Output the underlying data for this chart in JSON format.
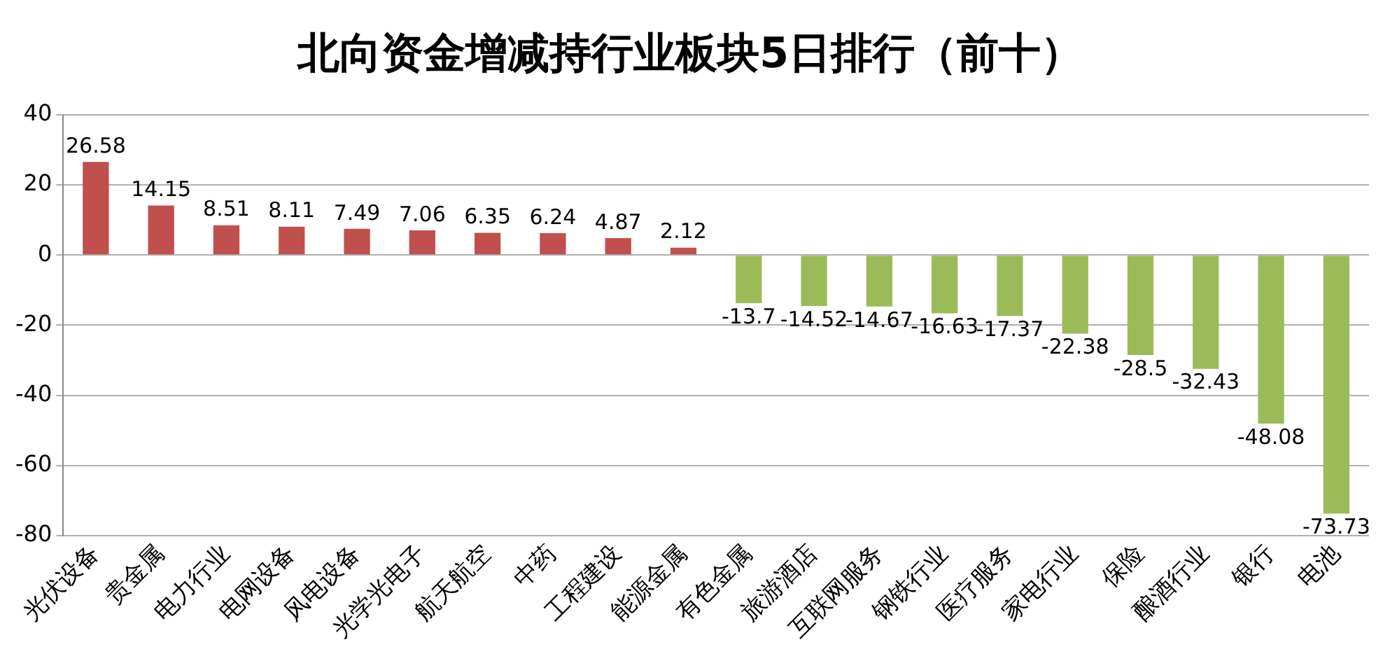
{
  "chart_data": {
    "type": "bar",
    "title": "北向资金增减持行业板块5日排行（前十）",
    "categories": [
      "光伏设备",
      "贵金属",
      "电力行业",
      "电网设备",
      "风电设备",
      "光学光电子",
      "航天航空",
      "中药",
      "工程建设",
      "能源金属",
      "有色金属",
      "旅游酒店",
      "互联网服务",
      "钢铁行业",
      "医疗服务",
      "家电行业",
      "保险",
      "酿酒行业",
      "银行",
      "电池"
    ],
    "values": [
      26.58,
      14.15,
      8.51,
      8.11,
      7.49,
      7.06,
      6.35,
      6.24,
      4.87,
      2.12,
      -13.7,
      -14.52,
      -14.67,
      -16.63,
      -17.37,
      -22.38,
      -28.5,
      -32.43,
      -48.08,
      -73.73
    ],
    "colors": [
      "#c0504d",
      "#c0504d",
      "#c0504d",
      "#c0504d",
      "#c0504d",
      "#c0504d",
      "#c0504d",
      "#c0504d",
      "#c0504d",
      "#c0504d",
      "#9bbb59",
      "#9bbb59",
      "#9bbb59",
      "#9bbb59",
      "#9bbb59",
      "#9bbb59",
      "#9bbb59",
      "#9bbb59",
      "#9bbb59",
      "#9bbb59"
    ],
    "ylim": [
      -80,
      40
    ],
    "yticks": [
      -80,
      -60,
      -40,
      -20,
      0,
      20,
      40
    ],
    "grid": "y",
    "legend": false,
    "data_labels": true
  }
}
